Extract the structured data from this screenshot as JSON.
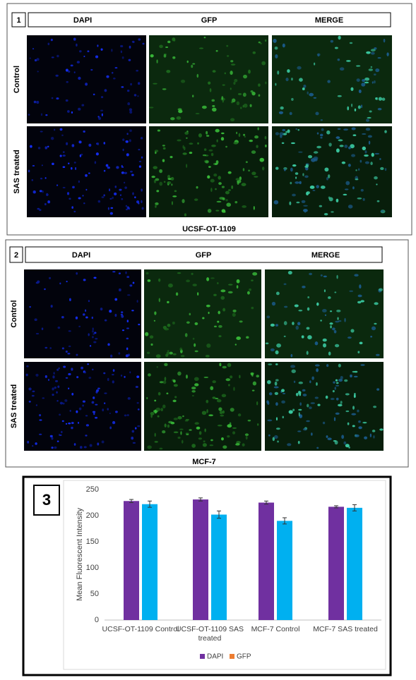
{
  "panels": [
    {
      "number": "1",
      "headers": [
        "DAPI",
        "GFP",
        "MERGE"
      ],
      "rows": [
        "Control",
        "SAS treated"
      ],
      "caption": "UCSF-OT-1109"
    },
    {
      "number": "2",
      "headers": [
        "DAPI",
        "GFP",
        "MERGE"
      ],
      "rows": [
        "Control",
        "SAS treated"
      ],
      "caption": "MCF-7"
    }
  ],
  "chart_panel_number": "3",
  "chart_data": {
    "type": "bar",
    "y_label": "Mean Fluorescent Intensity",
    "categories": [
      "UCSF-OT-1109 Control",
      "UCSF-OT-1109 SAS treated",
      "MCF-7 Control",
      "MCF-7 SAS treated"
    ],
    "series": [
      {
        "name": "DAPI",
        "color": "#7030a0",
        "legend_color": "#7030a0",
        "values": [
          228,
          231,
          225,
          217
        ],
        "errors": [
          3,
          3,
          3,
          2
        ]
      },
      {
        "name": "GFP",
        "color": "#00b0f0",
        "legend_color": "#ed7d31",
        "values": [
          222,
          202,
          190,
          215
        ],
        "errors": [
          6,
          7,
          6,
          6
        ]
      }
    ],
    "ylim": [
      0,
      250
    ],
    "yticks": [
      0,
      50,
      100,
      150,
      200,
      250
    ],
    "grid": false
  }
}
